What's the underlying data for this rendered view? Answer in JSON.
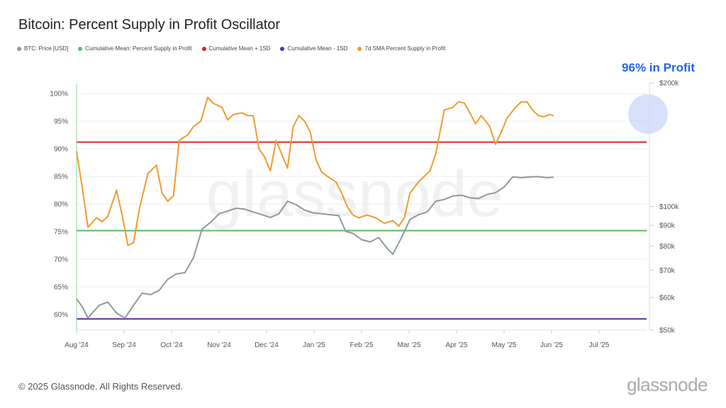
{
  "title": "Bitcoin: Percent Supply in Profit Oscillator",
  "annotation": "96% in Profit",
  "footer": {
    "copyright": "© 2025 Glassnode. All Rights Reserved.",
    "logo": "glassnode",
    "watermark": "glassnode"
  },
  "legend": [
    {
      "label": "BTC: Price [USD]",
      "color": "#8e9a9a"
    },
    {
      "label": "Cumulative Mean: Percent Supply in Profit",
      "color": "#5cbf6b"
    },
    {
      "label": "Cumulative Mean + 1SD",
      "color": "#e02424"
    },
    {
      "label": "Cumulative Mean - 1SD",
      "color": "#5b2ea6"
    },
    {
      "label": "7d SMA Percent Supply in Profit",
      "color": "#f29a2e"
    }
  ],
  "chart_data": {
    "type": "line",
    "x_ticks": [
      "Aug '24",
      "Sep '24",
      "Oct '24",
      "Nov '24",
      "Dec '24",
      "Jan '25",
      "Feb '25",
      "Mar '25",
      "Apr '25",
      "May '25",
      "Jun '25",
      "Jul '25"
    ],
    "x_range": [
      "Aug '24",
      "end Jul '25"
    ],
    "y_left": {
      "ticks": [
        "60%",
        "65%",
        "70%",
        "75%",
        "80%",
        "85%",
        "90%",
        "95%",
        "100%"
      ],
      "range": [
        59,
        101
      ]
    },
    "y_right": {
      "ticks": [
        "$50k",
        "$60k",
        "$70k",
        "$80k",
        "$90k",
        "$100k",
        "$200k"
      ],
      "scale": "log",
      "range": [
        50000,
        200000
      ]
    },
    "reference_lines": [
      {
        "name": "Cumulative Mean: Percent Supply in Profit",
        "value": 75.2,
        "color": "#5cbf6b"
      },
      {
        "name": "Cumulative Mean + 1SD",
        "value": 91.2,
        "color": "#e02424"
      },
      {
        "name": "Cumulative Mean - 1SD",
        "value": 59.2,
        "color": "#5b2ea6"
      }
    ],
    "series": [
      {
        "name": "7d SMA Percent Supply in Profit",
        "axis": "left",
        "color": "#f29a2e",
        "points": [
          [
            0.0,
            89.5
          ],
          [
            0.01,
            83.0
          ],
          [
            0.02,
            75.8
          ],
          [
            0.035,
            77.5
          ],
          [
            0.045,
            76.8
          ],
          [
            0.055,
            77.8
          ],
          [
            0.07,
            82.5
          ],
          [
            0.08,
            78.0
          ],
          [
            0.09,
            72.5
          ],
          [
            0.1,
            73.0
          ],
          [
            0.11,
            79.0
          ],
          [
            0.125,
            85.5
          ],
          [
            0.14,
            87.0
          ],
          [
            0.15,
            82.0
          ],
          [
            0.16,
            80.5
          ],
          [
            0.17,
            81.5
          ],
          [
            0.18,
            91.5
          ],
          [
            0.195,
            92.5
          ],
          [
            0.205,
            94.0
          ],
          [
            0.218,
            95.0
          ],
          [
            0.23,
            99.3
          ],
          [
            0.24,
            98.2
          ],
          [
            0.255,
            97.5
          ],
          [
            0.265,
            95.2
          ],
          [
            0.275,
            96.2
          ],
          [
            0.29,
            96.5
          ],
          [
            0.3,
            96.0
          ],
          [
            0.31,
            96.0
          ],
          [
            0.32,
            90.0
          ],
          [
            0.33,
            88.5
          ],
          [
            0.34,
            86.0
          ],
          [
            0.35,
            91.5
          ],
          [
            0.36,
            89.0
          ],
          [
            0.37,
            86.5
          ],
          [
            0.38,
            94.0
          ],
          [
            0.39,
            96.0
          ],
          [
            0.4,
            95.0
          ],
          [
            0.41,
            93.0
          ],
          [
            0.42,
            88.0
          ],
          [
            0.43,
            85.8
          ],
          [
            0.44,
            85.0
          ],
          [
            0.455,
            84.0
          ],
          [
            0.465,
            82.0
          ],
          [
            0.475,
            79.5
          ],
          [
            0.485,
            78.0
          ],
          [
            0.495,
            77.5
          ],
          [
            0.51,
            78.0
          ],
          [
            0.525,
            77.5
          ],
          [
            0.54,
            76.5
          ],
          [
            0.555,
            77.0
          ],
          [
            0.565,
            76.0
          ],
          [
            0.575,
            77.5
          ],
          [
            0.585,
            82.0
          ],
          [
            0.6,
            84.0
          ],
          [
            0.61,
            85.0
          ],
          [
            0.62,
            86.0
          ],
          [
            0.63,
            89.0
          ],
          [
            0.645,
            97.0
          ],
          [
            0.66,
            97.5
          ],
          [
            0.67,
            98.5
          ],
          [
            0.68,
            98.3
          ],
          [
            0.69,
            96.5
          ],
          [
            0.7,
            94.5
          ],
          [
            0.71,
            96.0
          ],
          [
            0.725,
            94.0
          ],
          [
            0.735,
            90.8
          ],
          [
            0.745,
            93.0
          ],
          [
            0.755,
            95.5
          ],
          [
            0.77,
            97.5
          ],
          [
            0.78,
            98.5
          ],
          [
            0.79,
            98.5
          ],
          [
            0.8,
            97.0
          ],
          [
            0.81,
            96.0
          ],
          [
            0.82,
            95.8
          ],
          [
            0.83,
            96.2
          ],
          [
            0.836,
            96.0
          ]
        ]
      },
      {
        "name": "BTC: Price [USD]",
        "axis": "right",
        "color": "#8e9a9a",
        "points": [
          [
            0.0,
            59500
          ],
          [
            0.01,
            57000
          ],
          [
            0.02,
            53500
          ],
          [
            0.03,
            55500
          ],
          [
            0.04,
            57500
          ],
          [
            0.055,
            58500
          ],
          [
            0.07,
            55000
          ],
          [
            0.085,
            53500
          ],
          [
            0.1,
            57500
          ],
          [
            0.115,
            61500
          ],
          [
            0.13,
            61000
          ],
          [
            0.145,
            62500
          ],
          [
            0.16,
            66500
          ],
          [
            0.175,
            68500
          ],
          [
            0.19,
            69000
          ],
          [
            0.205,
            75000
          ],
          [
            0.22,
            88000
          ],
          [
            0.235,
            91500
          ],
          [
            0.25,
            96000
          ],
          [
            0.265,
            97500
          ],
          [
            0.28,
            99000
          ],
          [
            0.295,
            98500
          ],
          [
            0.31,
            97000
          ],
          [
            0.325,
            95500
          ],
          [
            0.34,
            94000
          ],
          [
            0.355,
            96000
          ],
          [
            0.37,
            103000
          ],
          [
            0.385,
            101000
          ],
          [
            0.4,
            98000
          ],
          [
            0.415,
            96500
          ],
          [
            0.43,
            96000
          ],
          [
            0.445,
            95500
          ],
          [
            0.46,
            95000
          ],
          [
            0.472,
            87000
          ],
          [
            0.485,
            86000
          ],
          [
            0.5,
            83000
          ],
          [
            0.515,
            82000
          ],
          [
            0.53,
            84000
          ],
          [
            0.545,
            79000
          ],
          [
            0.555,
            76500
          ],
          [
            0.57,
            84000
          ],
          [
            0.585,
            93000
          ],
          [
            0.6,
            95500
          ],
          [
            0.615,
            97000
          ],
          [
            0.63,
            103000
          ],
          [
            0.645,
            104000
          ],
          [
            0.66,
            106000
          ],
          [
            0.675,
            106500
          ],
          [
            0.69,
            105000
          ],
          [
            0.705,
            104500
          ],
          [
            0.72,
            107000
          ],
          [
            0.735,
            108000
          ],
          [
            0.75,
            111500
          ],
          [
            0.765,
            118000
          ],
          [
            0.78,
            117500
          ],
          [
            0.795,
            118000
          ],
          [
            0.81,
            118200
          ],
          [
            0.825,
            117500
          ],
          [
            0.836,
            117800
          ]
        ]
      }
    ]
  }
}
